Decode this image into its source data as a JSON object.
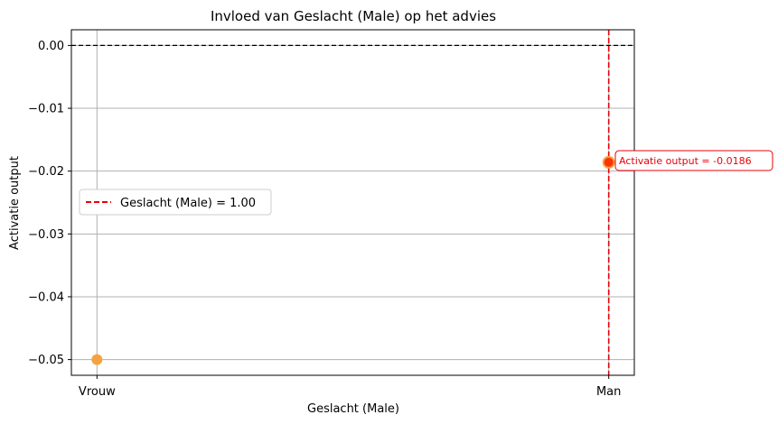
{
  "chart_data": {
    "type": "scatter",
    "title": "Invloed van Geslacht (Male) op het advies",
    "xlabel": "Geslacht (Male)",
    "ylabel": "Activatie output",
    "x_tick_labels": [
      "Vrouw",
      "Man"
    ],
    "x_ticks": [
      0,
      1
    ],
    "xlim": [
      -0.05,
      1.05
    ],
    "ylim": [
      -0.0525,
      0.0025
    ],
    "y_ticks": [
      0.0,
      -0.01,
      -0.02,
      -0.03,
      -0.04,
      -0.05
    ],
    "y_tick_labels": [
      "0.00",
      "−0.01",
      "−0.02",
      "−0.03",
      "−0.04",
      "−0.05"
    ],
    "grid": true,
    "points": [
      {
        "x": 0,
        "y": -0.05,
        "color": "#f4a340"
      },
      {
        "x": 1,
        "y": -0.0186,
        "color": "#ff3300"
      }
    ],
    "hline": {
      "y": 0.0,
      "color": "#000000",
      "style": "dashed"
    },
    "vline": {
      "x": 1.0,
      "color": "#e8000b",
      "style": "dashed"
    },
    "legend": {
      "placement": "center-left",
      "label": "Geslacht (Male) = 1.00"
    },
    "annotation": {
      "text": "Activatie output = -0.0186",
      "color": "#e8000b"
    }
  }
}
